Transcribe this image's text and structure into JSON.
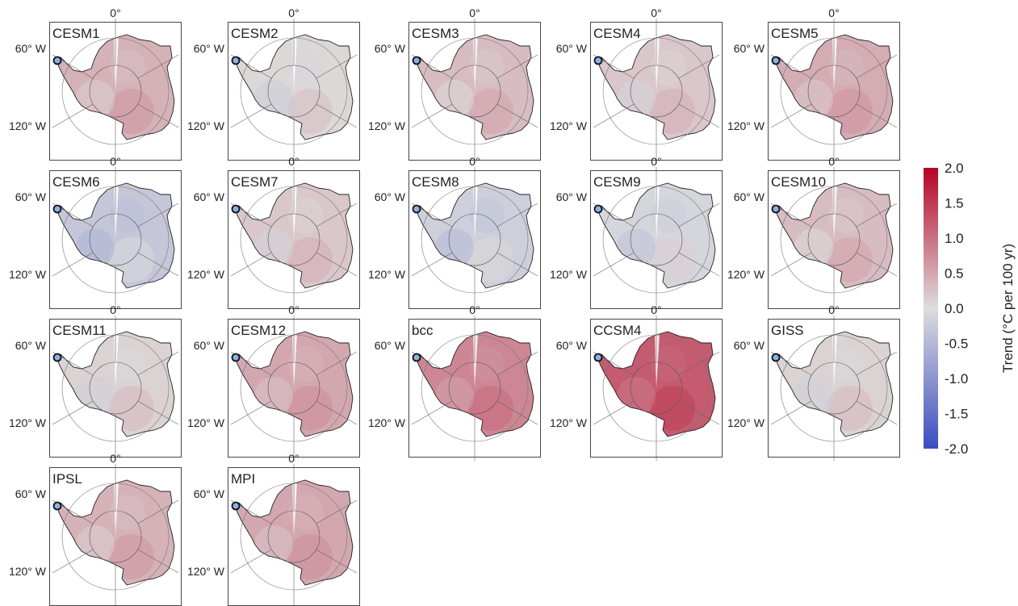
{
  "figure": {
    "lat_ticks": [
      "0°",
      "60° W",
      "120° W"
    ],
    "colorbar": {
      "label": "Trend (°C per 100 yr)",
      "ticks": [
        "2.0",
        "1.5",
        "1.0",
        "0.5",
        "0.0",
        "-0.5",
        "-1.0",
        "-1.5",
        "-2.0"
      ],
      "range": [
        -2.0,
        2.0
      ],
      "colormap": "coolwarm",
      "color_low": "#3b4cc0",
      "color_mid": "#dddddd",
      "color_high": "#b40426"
    }
  },
  "chart_data": {
    "type": "heatmap",
    "description_of_encoding": "Map panels of Antarctic surface temperature trend; value is approximate overall trend per model",
    "grid": true,
    "legend_placement": "right",
    "panels": [
      {
        "name": "CESM1",
        "trend": 0.4
      },
      {
        "name": "CESM2",
        "trend": 0.05
      },
      {
        "name": "CESM3",
        "trend": 0.3
      },
      {
        "name": "CESM4",
        "trend": 0.2
      },
      {
        "name": "CESM5",
        "trend": 0.45
      },
      {
        "name": "CESM6",
        "trend": -0.3
      },
      {
        "name": "CESM7",
        "trend": 0.2
      },
      {
        "name": "CESM8",
        "trend": -0.2
      },
      {
        "name": "CESM9",
        "trend": -0.1
      },
      {
        "name": "CESM10",
        "trend": 0.3
      },
      {
        "name": "CESM11",
        "trend": 0.1
      },
      {
        "name": "CESM12",
        "trend": 0.5
      },
      {
        "name": "bcc",
        "trend": 0.8
      },
      {
        "name": "CCSM4",
        "trend": 1.2
      },
      {
        "name": "GISS",
        "trend": 0.1
      },
      {
        "name": "IPSL",
        "trend": 0.4
      },
      {
        "name": "MPI",
        "trend": 0.5
      }
    ]
  }
}
